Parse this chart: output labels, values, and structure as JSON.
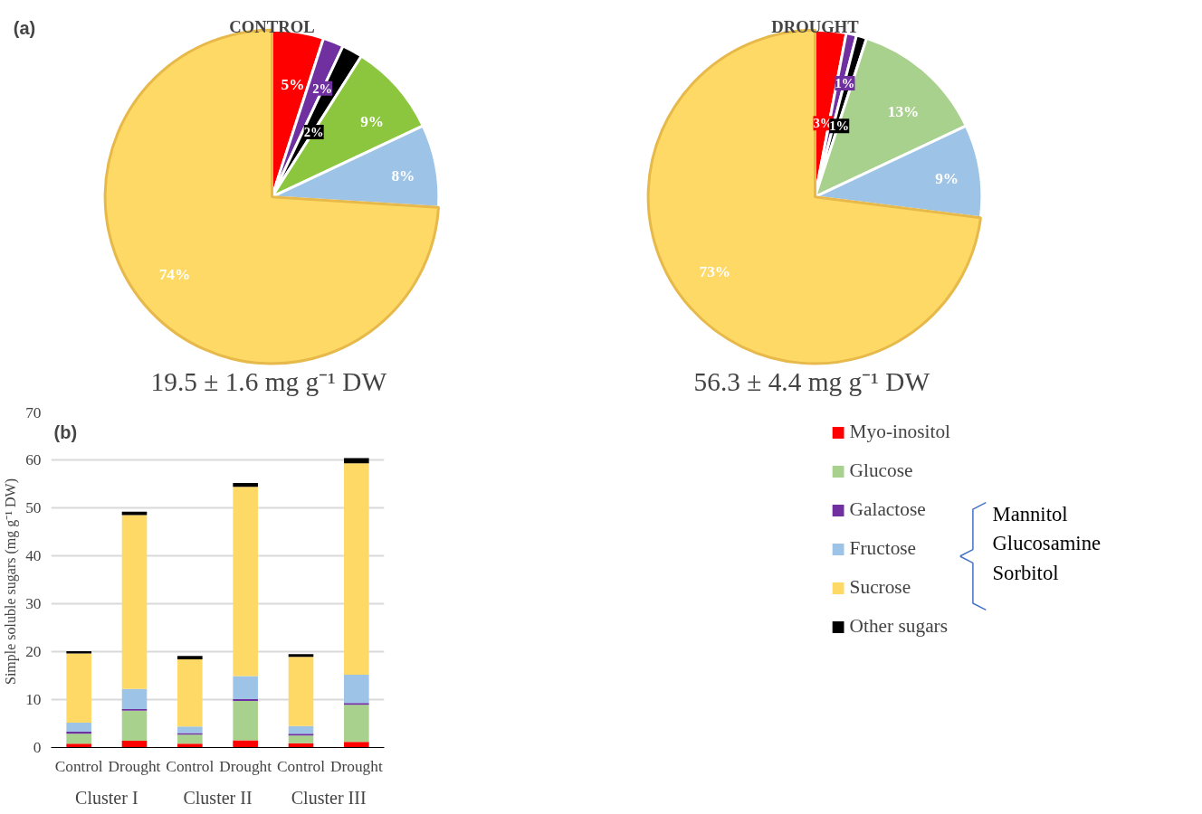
{
  "chart_data": [
    {
      "type": "pie",
      "title": "CONTROL",
      "subtitle": "19.5 ± 1.6 mg  g⁻¹ DW",
      "annotations": [
        "(a)"
      ],
      "categories": [
        null,
        null,
        null,
        null,
        null,
        null
      ],
      "values": [
        5,
        2,
        2,
        9,
        8,
        74
      ],
      "value_labels": [
        "5%",
        "2%",
        "2%",
        "9%",
        "8%",
        "74%"
      ],
      "colors": [
        "#ff0000",
        "#7030a0",
        "#000000",
        "#8cc63f",
        "#9dc3e6",
        "#ffd966"
      ]
    },
    {
      "type": "pie",
      "title": "DROUGHT",
      "subtitle": "56.3 ± 4.4 mg  g⁻¹ DW",
      "categories": [
        null,
        null,
        null,
        null,
        null,
        null
      ],
      "values": [
        3,
        1,
        1,
        13,
        9,
        73
      ],
      "value_labels": [
        "3%",
        "1%",
        "1%",
        "13%",
        "9%",
        "73%"
      ],
      "colors": [
        "#ff0000",
        "#7030a0",
        "#000000",
        "#a9d18e",
        "#9dc3e6",
        "#ffd966"
      ]
    },
    {
      "type": "bar",
      "stacked": true,
      "ylabel": "Simple soluble sugars (mg  g⁻¹ DW)",
      "annotations": [
        "(b)",
        "Cluster I",
        "Cluster II",
        "Cluster III",
        "Mannitol\nGlucosamine\nSorbitol"
      ],
      "categories": [
        "Control",
        "Drought",
        "Control",
        "Drought",
        "Control",
        "Drought"
      ],
      "ylim": [
        0,
        70
      ],
      "yticks": [
        0,
        10,
        20,
        30,
        40,
        50,
        60,
        70
      ],
      "grid": "y",
      "legend": "right",
      "series": [
        {
          "name": "Myo-inositol",
          "color": "#ff0000",
          "values": [
            0.8,
            1.4,
            0.8,
            1.5,
            0.9,
            1.2
          ]
        },
        {
          "name": "Glucose",
          "color": "#a9d18e",
          "values": [
            2.1,
            6.3,
            1.9,
            8.2,
            1.6,
            7.7
          ]
        },
        {
          "name": "Galactose",
          "color": "#7030a0",
          "values": [
            0.4,
            0.3,
            0.3,
            0.4,
            0.4,
            0.4
          ]
        },
        {
          "name": "Fructose",
          "color": "#9dc3e6",
          "values": [
            1.9,
            4.2,
            1.4,
            4.8,
            1.6,
            5.9
          ]
        },
        {
          "name": "Sucrose",
          "color": "#ffd966",
          "values": [
            14.4,
            36.3,
            14.0,
            39.5,
            14.4,
            44.1
          ]
        },
        {
          "name": "Other sugars",
          "color": "#000000",
          "values": [
            0.5,
            0.7,
            0.7,
            0.8,
            0.6,
            1.1
          ]
        }
      ]
    }
  ]
}
